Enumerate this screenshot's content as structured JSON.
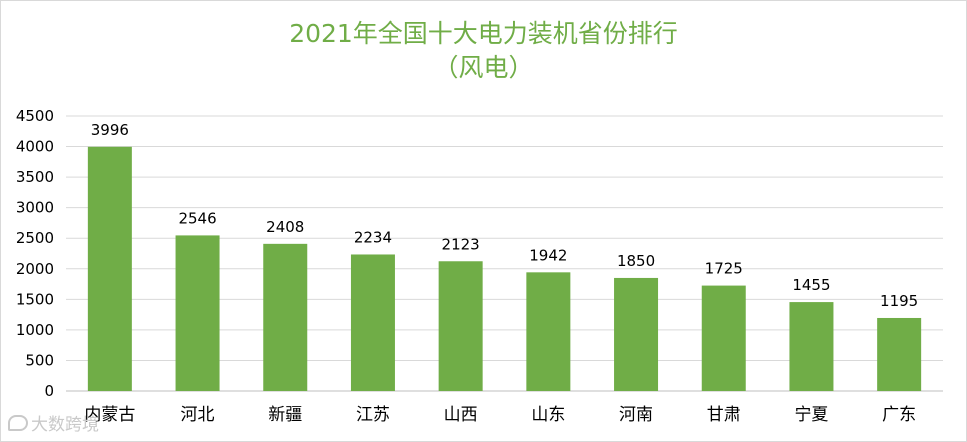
{
  "chart_data": {
    "type": "bar",
    "title": "2021年全国十大电力装机省份排行",
    "subtitle": "（风电）",
    "xlabel": "",
    "ylabel": "",
    "categories": [
      "内蒙古",
      "河北",
      "新疆",
      "江苏",
      "山西",
      "山东",
      "河南",
      "甘肃",
      "宁夏",
      "广东"
    ],
    "values": [
      3996,
      2546,
      2408,
      2234,
      2123,
      1942,
      1850,
      1725,
      1455,
      1195
    ],
    "ylim": [
      0,
      4500
    ],
    "yticks": [
      0,
      500,
      1000,
      1500,
      2000,
      2500,
      3000,
      3500,
      4000,
      4500
    ],
    "grid": true,
    "legend": "none",
    "colors": {
      "bar": "#70ad47",
      "title": "#70ad47",
      "grid": "#d9d9d9",
      "axis": "#bfbfbf",
      "text": "#000000"
    }
  },
  "watermark": {
    "text": "大数跨境"
  }
}
